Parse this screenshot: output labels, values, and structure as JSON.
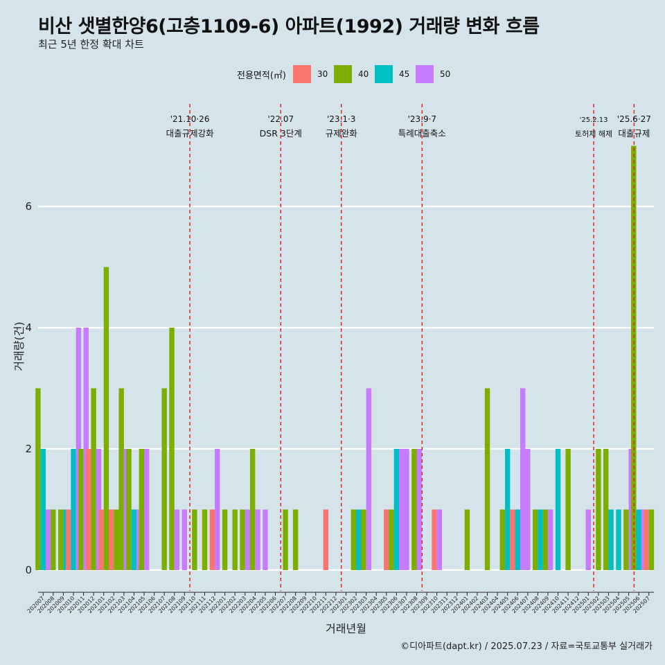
{
  "title": "비산 샛별한양6(고층1109-6) 아파트(1992) 거래량 변화 흐름",
  "subtitle": "최근 5년 한정 확대 차트",
  "caption": "©디아파트(dapt.kr) / 2025.07.23 / 자료=국토교통부 실거래가",
  "legend": {
    "title": "전용면적(㎡)",
    "items": [
      {
        "label": "30",
        "color": "#f8766d"
      },
      {
        "label": "40",
        "color": "#7cae00"
      },
      {
        "label": "45",
        "color": "#00bfc4"
      },
      {
        "label": "50",
        "color": "#c77cff"
      }
    ]
  },
  "chart_data": {
    "type": "bar",
    "title": "비산 샛별한양6(고층1109-6) 아파트(1992) 거래량 변화 흐름",
    "subtitle": "최근 5년 한정 확대 차트",
    "xlabel": "거래년월",
    "ylabel": "거래량(건)",
    "ylim": [
      -0.35,
      7.2
    ],
    "yticks": [
      0,
      2,
      4,
      6
    ],
    "grid": true,
    "legend_position": "top",
    "categories": [
      "202007",
      "202008",
      "202009",
      "202010",
      "202011",
      "202012",
      "202101",
      "202102",
      "202103",
      "202104",
      "202105",
      "202106",
      "202107",
      "202108",
      "202109",
      "202110",
      "202111",
      "202112",
      "202201",
      "202202",
      "202203",
      "202204",
      "202205",
      "202206",
      "202207",
      "202208",
      "202209",
      "202210",
      "202211",
      "202212",
      "202301",
      "202302",
      "202303",
      "202304",
      "202305",
      "202306",
      "202307",
      "202308",
      "202309",
      "202310",
      "202311",
      "202312",
      "202401",
      "202402",
      "202403",
      "202404",
      "202405",
      "202406",
      "202407",
      "202408",
      "202409",
      "202410",
      "202411",
      "202412",
      "202501",
      "202502",
      "202503",
      "202504",
      "202505",
      "202506",
      "202507"
    ],
    "series": [
      {
        "name": "30",
        "color": "#f8766d",
        "values": [
          0,
          0,
          0,
          1,
          0,
          2,
          1,
          1,
          0,
          0,
          0,
          0,
          0,
          0,
          0,
          0,
          0,
          1,
          0,
          0,
          0,
          0,
          0,
          0,
          0,
          0,
          0,
          0,
          1,
          0,
          0,
          0,
          0,
          0,
          1,
          0,
          0,
          0,
          0,
          1,
          0,
          0,
          0,
          0,
          0,
          0,
          0,
          1,
          0,
          0,
          0,
          0,
          0,
          0,
          0,
          0,
          0,
          0,
          0,
          0,
          1
        ]
      },
      {
        "name": "40",
        "color": "#7cae00",
        "values": [
          3,
          1,
          1,
          0,
          2,
          3,
          5,
          1,
          3,
          2,
          2,
          0,
          3,
          4,
          0,
          1,
          1,
          0,
          1,
          1,
          1,
          2,
          0,
          0,
          1,
          1,
          0,
          0,
          0,
          0,
          0,
          1,
          1,
          0,
          0,
          1,
          0,
          2,
          0,
          0,
          0,
          0,
          1,
          0,
          3,
          0,
          1,
          0,
          0,
          1,
          1,
          0,
          2,
          0,
          0,
          2,
          2,
          0,
          1,
          7,
          1
        ]
      },
      {
        "name": "45",
        "color": "#00bfc4",
        "values": [
          2,
          0,
          1,
          2,
          0,
          0,
          0,
          0,
          0,
          1,
          0,
          0,
          0,
          0,
          0,
          0,
          0,
          0,
          0,
          0,
          0,
          0,
          0,
          0,
          0,
          0,
          0,
          0,
          0,
          0,
          0,
          1,
          0,
          0,
          0,
          2,
          0,
          0,
          0,
          0,
          0,
          0,
          0,
          0,
          0,
          0,
          2,
          1,
          0,
          1,
          0,
          2,
          0,
          0,
          0,
          0,
          1,
          1,
          0,
          1,
          0
        ]
      },
      {
        "name": "50",
        "color": "#c77cff",
        "values": [
          1,
          0,
          0,
          4,
          4,
          2,
          0,
          0,
          2,
          1,
          2,
          0,
          0,
          1,
          1,
          0,
          0,
          2,
          0,
          0,
          1,
          1,
          1,
          0,
          0,
          0,
          0,
          0,
          0,
          0,
          0,
          0,
          3,
          0,
          0,
          2,
          2,
          2,
          0,
          1,
          0,
          0,
          0,
          0,
          0,
          0,
          1,
          3,
          2,
          0,
          1,
          0,
          0,
          0,
          1,
          0,
          0,
          0,
          2,
          1,
          0
        ]
      }
    ],
    "events": [
      {
        "x": "202110",
        "date": "'21.10·26",
        "label": "대출규제강화"
      },
      {
        "x": "202207",
        "date": "'22.07",
        "label": "DSR 3단계"
      },
      {
        "x": "202301",
        "date": "'23.1·3",
        "label": "규제완화"
      },
      {
        "x": "202309",
        "date": "'23.9·7",
        "label": "특례대출축소"
      },
      {
        "x": "202502",
        "date": "'25.2.13",
        "label": "토허제 해제"
      },
      {
        "x": "202506",
        "date": "'25.6·27",
        "label": "대출규제"
      }
    ]
  }
}
